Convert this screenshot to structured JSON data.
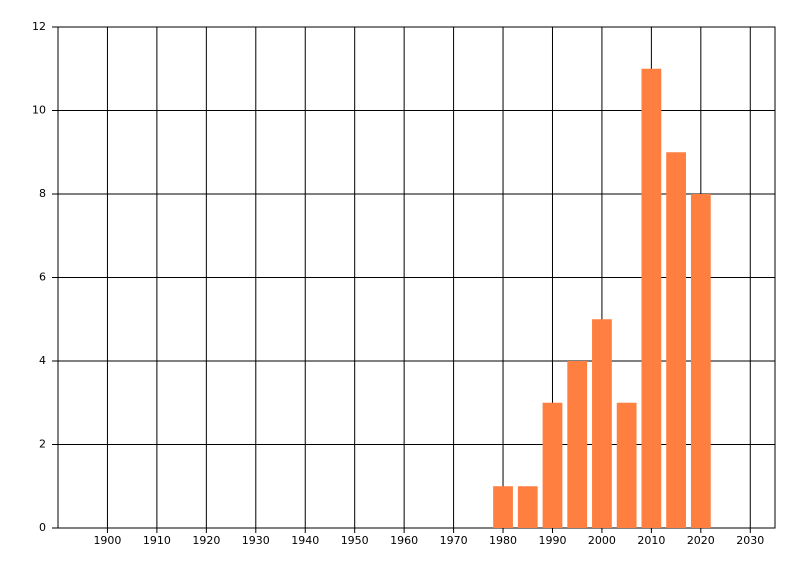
{
  "chart_data": {
    "type": "bar",
    "x": [
      1980,
      1985,
      1990,
      1995,
      2000,
      2005,
      2010,
      2015,
      2020
    ],
    "values": [
      1,
      1,
      3,
      4,
      5,
      3,
      11,
      9,
      8
    ],
    "color": "#ff7f40",
    "xlim": [
      1890,
      2035
    ],
    "xticks": [
      1900,
      1910,
      1920,
      1930,
      1940,
      1950,
      1960,
      1970,
      1980,
      1990,
      2000,
      2010,
      2020,
      2030
    ],
    "ylim": [
      0,
      12
    ],
    "yticks": [
      0,
      2,
      4,
      6,
      8,
      10,
      12
    ],
    "grid": true
  }
}
